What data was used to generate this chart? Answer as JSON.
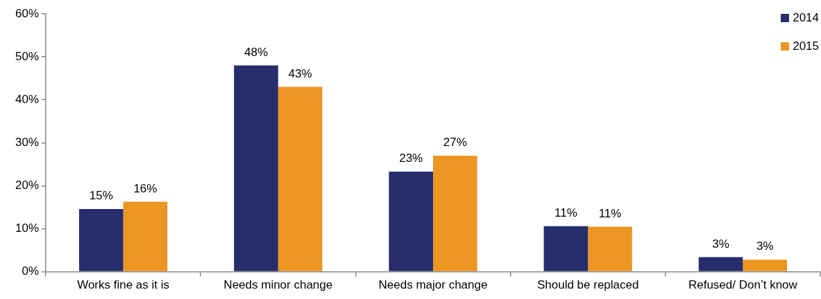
{
  "chart_data": {
    "type": "bar",
    "categories": [
      "Works fine as it is",
      "Needs minor change",
      "Needs major change",
      "Should be replaced",
      "Refused/ Don’t know"
    ],
    "series": [
      {
        "name": "2014",
        "color": "#262e6c",
        "values": [
          14.6,
          48,
          23.3,
          10.6,
          3.4
        ],
        "value_labels": [
          "15%",
          "48%",
          "23%",
          "11%",
          "3%"
        ]
      },
      {
        "name": "2015",
        "color": "#eb9623",
        "values": [
          16.3,
          43,
          27,
          10.5,
          2.8
        ],
        "value_labels": [
          "16%",
          "43%",
          "27%",
          "11%",
          "3%"
        ]
      }
    ],
    "ylim": [
      0,
      60
    ],
    "yticks": [
      {
        "value": 0,
        "label": "0%"
      },
      {
        "value": 10,
        "label": "10%"
      },
      {
        "value": 20,
        "label": "20%"
      },
      {
        "value": 30,
        "label": "30%"
      },
      {
        "value": 40,
        "label": "40%"
      },
      {
        "value": 50,
        "label": "50%"
      },
      {
        "value": 60,
        "label": "60%"
      }
    ],
    "legend": "top right"
  }
}
